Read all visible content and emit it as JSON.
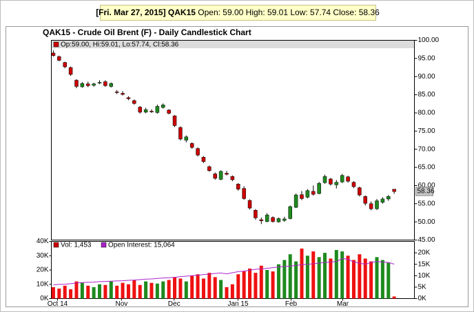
{
  "header": {
    "symbol": "[Fri. Mar 27, 2015] QAK15",
    "quote": "Open: 59.00 High: 59.01 Low: 57.74 Close: 58.36"
  },
  "chart_data": [
    {
      "type": "candlestick",
      "title": "QAK15 - Crude Oil Brent (F) - Daily Candlestick Chart",
      "series": [
        {
          "name": "Op:59.00, Hi:59.01, Lo:57.74, Cl:58.36",
          "color": "#cc0000",
          "up_color": "#1f8a1f",
          "down_color": "#cc0000",
          "open": [
            96.5,
            95.5,
            93.9,
            92.5,
            89.0,
            87.2,
            88.0,
            87.6,
            88.2,
            88.6,
            87.3,
            85.8,
            85.4,
            84.2,
            83.4,
            81.6,
            80.2,
            80.5,
            80.1,
            81.5,
            80.8,
            79.2,
            76.0,
            72.5,
            71.6,
            70.2,
            67.8,
            65.2,
            63.2,
            61.7,
            63.4,
            62.5,
            60.4,
            59.2,
            55.9,
            53.2,
            50.6,
            50.1,
            51.2,
            50.0,
            50.4,
            50.9,
            54.0,
            57.5,
            56.8,
            58.4,
            57.8,
            60.8,
            61.8,
            60.2,
            61.0,
            62.4,
            60.9,
            59.4,
            57.0,
            55.0,
            53.6,
            55.4,
            56.3,
            59.0
          ],
          "high": [
            97.2,
            95.8,
            94.1,
            92.8,
            89.3,
            88.5,
            88.6,
            88.3,
            89.0,
            89.0,
            88.4,
            86.3,
            86.0,
            84.6,
            83.7,
            81.9,
            81.4,
            81.0,
            82.3,
            82.6,
            81.0,
            79.4,
            76.3,
            73.8,
            71.9,
            70.5,
            68.1,
            65.5,
            63.6,
            64.2,
            64.0,
            62.8,
            60.7,
            59.8,
            56.2,
            53.5,
            51.2,
            52.4,
            51.5,
            51.2,
            51.4,
            54.5,
            57.8,
            58.5,
            59.0,
            60.0,
            61.0,
            63.0,
            62.1,
            61.5,
            63.2,
            62.7,
            61.2,
            59.7,
            57.3,
            55.6,
            56.3,
            56.8,
            57.4,
            59.01
          ],
          "low": [
            95.5,
            94.2,
            92.3,
            90.2,
            86.8,
            86.9,
            87.1,
            87.2,
            87.9,
            87.2,
            87.0,
            85.2,
            84.8,
            83.5,
            82.3,
            79.8,
            79.9,
            80.0,
            79.8,
            81.2,
            79.6,
            76.1,
            72.4,
            71.9,
            70.1,
            68.0,
            66.2,
            63.8,
            61.6,
            61.5,
            62.8,
            61.2,
            58.6,
            56.1,
            53.4,
            50.6,
            49.4,
            49.9,
            49.8,
            49.8,
            50.0,
            50.7,
            53.8,
            56.0,
            56.5,
            57.2,
            57.6,
            60.5,
            60.0,
            59.2,
            60.7,
            60.8,
            59.3,
            57.0,
            54.5,
            53.2,
            53.3,
            55.0,
            55.8,
            57.74
          ],
          "close": [
            95.8,
            94.5,
            92.7,
            90.6,
            87.3,
            88.1,
            87.5,
            88.0,
            88.4,
            87.5,
            88.1,
            85.6,
            85.1,
            83.9,
            82.6,
            80.2,
            80.9,
            80.3,
            81.8,
            82.2,
            79.9,
            76.5,
            72.8,
            73.4,
            70.5,
            68.4,
            66.6,
            64.1,
            62.0,
            63.9,
            63.1,
            61.6,
            59.0,
            56.4,
            53.8,
            51.1,
            50.3,
            51.9,
            50.1,
            50.9,
            50.8,
            54.2,
            57.4,
            56.4,
            58.6,
            57.6,
            60.6,
            62.5,
            60.4,
            60.9,
            62.8,
            61.2,
            59.7,
            57.4,
            55.1,
            53.6,
            55.8,
            56.3,
            57.0,
            58.36
          ]
        }
      ],
      "xlim": [
        -0.35,
        62.5
      ],
      "ylim": [
        45,
        100
      ],
      "yticks": [
        {
          "value": 45,
          "label": "45.00"
        },
        {
          "value": 50,
          "label": "50.00"
        },
        {
          "value": 55,
          "label": "55.00"
        },
        {
          "value": 60,
          "label": "60.00"
        },
        {
          "value": 65,
          "label": "65.00"
        },
        {
          "value": 70,
          "label": "70.00"
        },
        {
          "value": 75,
          "label": "75.00"
        },
        {
          "value": 80,
          "label": "80.00"
        },
        {
          "value": 85,
          "label": "85.00"
        },
        {
          "value": 90,
          "label": "90.00"
        },
        {
          "value": 95,
          "label": "95.00"
        },
        {
          "value": 100,
          "label": "100.00"
        }
      ]
    },
    {
      "type": "bar",
      "series": [
        {
          "name": "Vol: 1,453",
          "color": "#cc0000",
          "up_color": "#1f8a1f",
          "down_color": "#ee1111",
          "values": [
            8000,
            7000,
            9000,
            6500,
            12000,
            11000,
            9000,
            8000,
            10000,
            9500,
            12000,
            9000,
            11000,
            10000,
            13000,
            9500,
            12000,
            11000,
            10500,
            12000,
            13000,
            15000,
            14000,
            12000,
            16000,
            17000,
            14000,
            18000,
            15000,
            13000,
            8000,
            10000,
            17000,
            19000,
            21000,
            18000,
            23000,
            20000,
            19000,
            24000,
            27000,
            31000,
            26000,
            35000,
            30000,
            33000,
            29000,
            32000,
            28000,
            34000,
            33000,
            30000,
            27000,
            31000,
            28000,
            26000,
            29000,
            27000,
            25000,
            1453
          ]
        },
        {
          "name": "Open Interest: 15,064",
          "color": "#aa22cc",
          "axis": "y2",
          "values": [
            6000,
            6200,
            6300,
            6500,
            6800,
            7000,
            7100,
            7200,
            7400,
            7500,
            7600,
            7700,
            7800,
            8000,
            8100,
            8300,
            8500,
            8600,
            8800,
            9000,
            9100,
            9300,
            9600,
            9800,
            10000,
            10200,
            10500,
            10700,
            11000,
            11200,
            10800,
            11300,
            11800,
            12000,
            12400,
            12800,
            13000,
            13200,
            13500,
            13800,
            14000,
            14200,
            14500,
            14800,
            15000,
            15200,
            15500,
            15800,
            16000,
            16200,
            17500,
            17200,
            16000,
            15500,
            15000,
            15800,
            16200,
            16000,
            15800,
            15064
          ]
        }
      ],
      "xlim": [
        -0.35,
        62.5
      ],
      "xticks": [
        {
          "value": 0.72,
          "label": "Oct 14"
        },
        {
          "value": 11.8,
          "label": "Nov"
        },
        {
          "value": 20.9,
          "label": "Dec"
        },
        {
          "value": 31.97,
          "label": "Jan 15"
        },
        {
          "value": 41.15,
          "label": "Feb"
        },
        {
          "value": 50.1,
          "label": "Mar"
        }
      ],
      "ylim": [
        0,
        40000
      ],
      "yticks": [
        {
          "value": 0,
          "label": "0K"
        },
        {
          "value": 10000,
          "label": "10K"
        },
        {
          "value": 20000,
          "label": "20K"
        },
        {
          "value": 30000,
          "label": "30K"
        },
        {
          "value": 40000,
          "label": "40K"
        }
      ],
      "y2lim": [
        0,
        25000
      ],
      "y2ticks": [
        {
          "value": 0,
          "label": "0K"
        },
        {
          "value": 5000,
          "label": "5K"
        },
        {
          "value": 10000,
          "label": "10K"
        },
        {
          "value": 15000,
          "label": "15K"
        },
        {
          "value": 20000,
          "label": "20K"
        }
      ]
    }
  ]
}
